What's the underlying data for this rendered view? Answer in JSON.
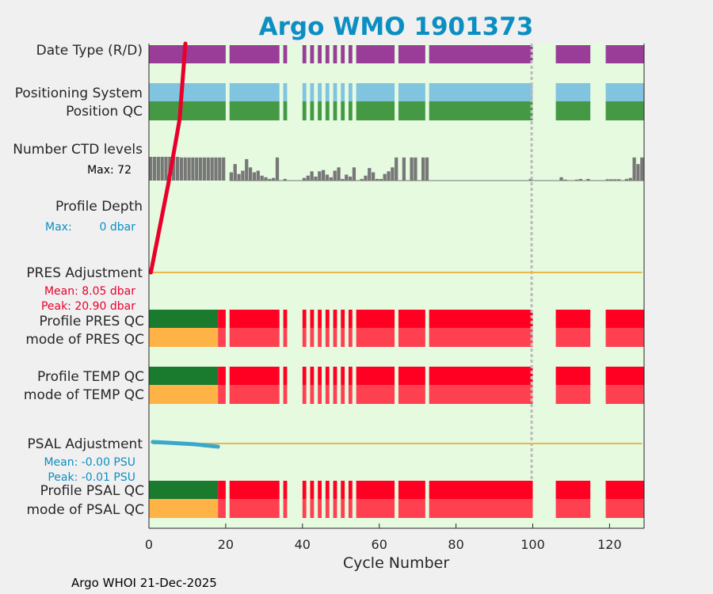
{
  "title": "Argo WMO 1901373",
  "footer": "Argo WHOI 21-Dec-2025",
  "colors": {
    "plot_bg": "#e6fae0",
    "date_type": "#993d99",
    "positioning": "#80c4e0",
    "position_qc": "#459945",
    "ctd_bars": "#777777",
    "pres_adj_line": "#e8b84a",
    "pres_adj_trace": "#e8002b",
    "psal_adj_trace": "#3aa8cc",
    "qc_good": "#1a7a2e",
    "qc_probably_good": "#ffb347",
    "qc_bad": "#ff0022",
    "qc_bad_light": "#ff4050",
    "gap_line": "#bbbbbb",
    "red_text": "#e8002b",
    "blue_text": "#0b8fc2"
  },
  "row_labels": {
    "date_type": "Date Type (R/D)",
    "positioning_system": "Positioning System",
    "position_qc": "Position QC",
    "ctd_levels": "Number CTD levels",
    "ctd_max": "Max: 72",
    "profile_depth": "Profile Depth",
    "depth_max_prefix": "Max:",
    "depth_max_value": "0 dbar",
    "pres_adjustment": "PRES Adjustment",
    "pres_mean": "Mean: 8.05 dbar",
    "pres_peak": "Peak: 20.90 dbar",
    "profile_pres_qc": "Profile PRES QC",
    "mode_pres_qc": "mode of PRES QC",
    "profile_temp_qc": "Profile TEMP QC",
    "mode_temp_qc": "mode of TEMP QC",
    "psal_adjustment": "PSAL Adjustment",
    "psal_mean": "Mean: -0.00 PSU",
    "psal_peak": "Peak: -0.01 PSU",
    "profile_psal_qc": "Profile PSAL QC",
    "mode_psal_qc": "mode of PSAL QC"
  },
  "chart_data": {
    "type": "bar",
    "xlabel": "Cycle Number",
    "xlim": [
      0,
      129
    ],
    "xticks": [
      0,
      20,
      40,
      60,
      80,
      100,
      120
    ],
    "grid": false,
    "present_cycles": [
      [
        0,
        20
      ],
      [
        21,
        34
      ],
      [
        35,
        36
      ],
      [
        40,
        41
      ],
      [
        42,
        43
      ],
      [
        44,
        45
      ],
      [
        46,
        47
      ],
      [
        48,
        49
      ],
      [
        50,
        51
      ],
      [
        52,
        53
      ],
      [
        54,
        64
      ],
      [
        65,
        72
      ],
      [
        73,
        100
      ],
      [
        106,
        115
      ],
      [
        119,
        129
      ]
    ],
    "ctd_levels": {
      "max": 72,
      "values": [
        [
          0,
          72
        ],
        [
          1,
          72
        ],
        [
          2,
          72
        ],
        [
          3,
          72
        ],
        [
          4,
          72
        ],
        [
          5,
          72
        ],
        [
          6,
          72
        ],
        [
          7,
          72
        ],
        [
          8,
          70
        ],
        [
          9,
          70
        ],
        [
          10,
          70
        ],
        [
          11,
          70
        ],
        [
          12,
          70
        ],
        [
          13,
          70
        ],
        [
          14,
          70
        ],
        [
          15,
          70
        ],
        [
          16,
          70
        ],
        [
          17,
          70
        ],
        [
          18,
          70
        ],
        [
          19,
          70
        ],
        [
          21,
          25
        ],
        [
          22,
          50
        ],
        [
          23,
          20
        ],
        [
          24,
          30
        ],
        [
          25,
          65
        ],
        [
          26,
          40
        ],
        [
          27,
          25
        ],
        [
          28,
          30
        ],
        [
          29,
          15
        ],
        [
          30,
          10
        ],
        [
          31,
          5
        ],
        [
          32,
          8
        ],
        [
          33,
          70
        ],
        [
          35,
          5
        ],
        [
          40,
          8
        ],
        [
          41,
          15
        ],
        [
          42,
          28
        ],
        [
          43,
          12
        ],
        [
          44,
          28
        ],
        [
          45,
          32
        ],
        [
          46,
          18
        ],
        [
          47,
          10
        ],
        [
          48,
          30
        ],
        [
          49,
          40
        ],
        [
          50,
          5
        ],
        [
          51,
          18
        ],
        [
          52,
          12
        ],
        [
          53,
          40
        ],
        [
          55,
          5
        ],
        [
          56,
          15
        ],
        [
          57,
          38
        ],
        [
          58,
          25
        ],
        [
          59,
          5
        ],
        [
          60,
          5
        ],
        [
          61,
          20
        ],
        [
          62,
          28
        ],
        [
          63,
          40
        ],
        [
          64,
          70
        ],
        [
          66,
          70
        ],
        [
          68,
          70
        ],
        [
          69,
          70
        ],
        [
          71,
          70
        ],
        [
          72,
          70
        ],
        [
          99,
          5
        ],
        [
          107,
          10
        ],
        [
          108,
          3
        ],
        [
          111,
          3
        ],
        [
          112,
          5
        ],
        [
          114,
          5
        ],
        [
          119,
          4
        ],
        [
          120,
          4
        ],
        [
          121,
          4
        ],
        [
          122,
          4
        ],
        [
          124,
          5
        ],
        [
          125,
          8
        ],
        [
          126,
          70
        ],
        [
          127,
          50
        ],
        [
          128,
          70
        ]
      ]
    },
    "pres_adjustment_trace": [
      [
        0.5,
        0
      ],
      [
        5,
        8
      ],
      [
        8,
        14
      ],
      [
        9.5,
        20.9
      ]
    ],
    "psal_adjustment_trace": [
      [
        1,
        0
      ],
      [
        6,
        -0.002
      ],
      [
        12,
        -0.005
      ],
      [
        18,
        -0.01
      ]
    ],
    "pres_qc_segments": [
      {
        "range": [
          0,
          18
        ],
        "profile": "good",
        "mode": "probably_good"
      },
      {
        "range": [
          18,
          129
        ],
        "profile": "bad",
        "mode": "bad"
      }
    ],
    "temp_qc_segments": [
      {
        "range": [
          0,
          18
        ],
        "profile": "good",
        "mode": "probably_good"
      },
      {
        "range": [
          18,
          129
        ],
        "profile": "bad",
        "mode": "bad"
      }
    ],
    "psal_qc_segments": [
      {
        "range": [
          0,
          18
        ],
        "profile": "good",
        "mode": "probably_good"
      },
      {
        "range": [
          18,
          129
        ],
        "profile": "bad",
        "mode": "bad"
      }
    ],
    "gap_marker_cycle": 99.7
  }
}
